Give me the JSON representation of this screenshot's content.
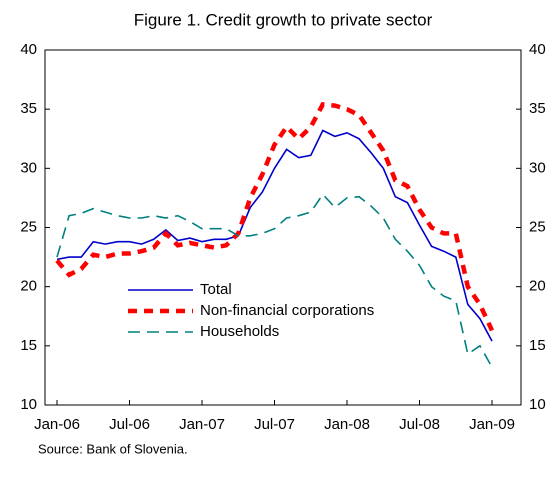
{
  "chart_data": {
    "type": "line",
    "title": "Figure 1. Credit growth to private sector",
    "source": "Source:  Bank of Slovenia.",
    "categories": [
      "Jan-06",
      null,
      null,
      null,
      null,
      null,
      "Jul-06",
      null,
      null,
      null,
      null,
      null,
      "Jan-07",
      null,
      null,
      null,
      null,
      null,
      "Jul-07",
      null,
      null,
      null,
      null,
      null,
      "Jan-08",
      null,
      null,
      null,
      null,
      null,
      "Jul-08",
      null,
      null,
      null,
      null,
      null,
      "Jan-09"
    ],
    "series": [
      {
        "name": "Total",
        "color": "#0000cc",
        "values": [
          22.3,
          22.5,
          22.5,
          23.8,
          23.6,
          23.8,
          23.8,
          23.6,
          24.0,
          24.8,
          23.9,
          24.1,
          23.8,
          24.0,
          24.0,
          24.3,
          26.7,
          28.0,
          30.0,
          31.6,
          30.9,
          31.1,
          33.2,
          32.7,
          33.0,
          32.5,
          31.3,
          30.0,
          27.6,
          27.1,
          25.2,
          23.4,
          23.0,
          22.5,
          18.5,
          17.3,
          15.4
        ]
      },
      {
        "name": "Non-financial corporations",
        "color": "#ff0000",
        "values": [
          22.2,
          21.0,
          21.5,
          22.7,
          22.5,
          22.8,
          22.8,
          23.0,
          23.3,
          24.5,
          23.5,
          23.7,
          23.5,
          23.3,
          23.5,
          24.5,
          27.5,
          29.5,
          32.0,
          33.5,
          32.5,
          33.5,
          35.4,
          35.3,
          35.0,
          34.5,
          33.0,
          31.5,
          29.0,
          28.5,
          26.5,
          25.0,
          24.5,
          24.5,
          20.0,
          18.5,
          16.3
        ]
      },
      {
        "name": "Households",
        "color": "#008080",
        "values": [
          22.5,
          26.0,
          26.2,
          26.6,
          26.3,
          26.0,
          25.8,
          25.8,
          26.0,
          25.8,
          26.0,
          25.5,
          24.9,
          24.9,
          24.9,
          24.3,
          24.3,
          24.5,
          24.9,
          25.8,
          26.0,
          26.3,
          27.8,
          26.7,
          27.5,
          27.6,
          26.8,
          25.8,
          24.0,
          23.0,
          21.8,
          20.0,
          19.2,
          18.8,
          14.3,
          15.0,
          13.2
        ]
      }
    ],
    "ylim": [
      10,
      40
    ],
    "yticks": [
      10,
      15,
      20,
      25,
      30,
      35,
      40
    ],
    "y2lim": [
      10,
      40
    ],
    "y2ticks": [
      10,
      15,
      20,
      25,
      30,
      35,
      40
    ]
  }
}
